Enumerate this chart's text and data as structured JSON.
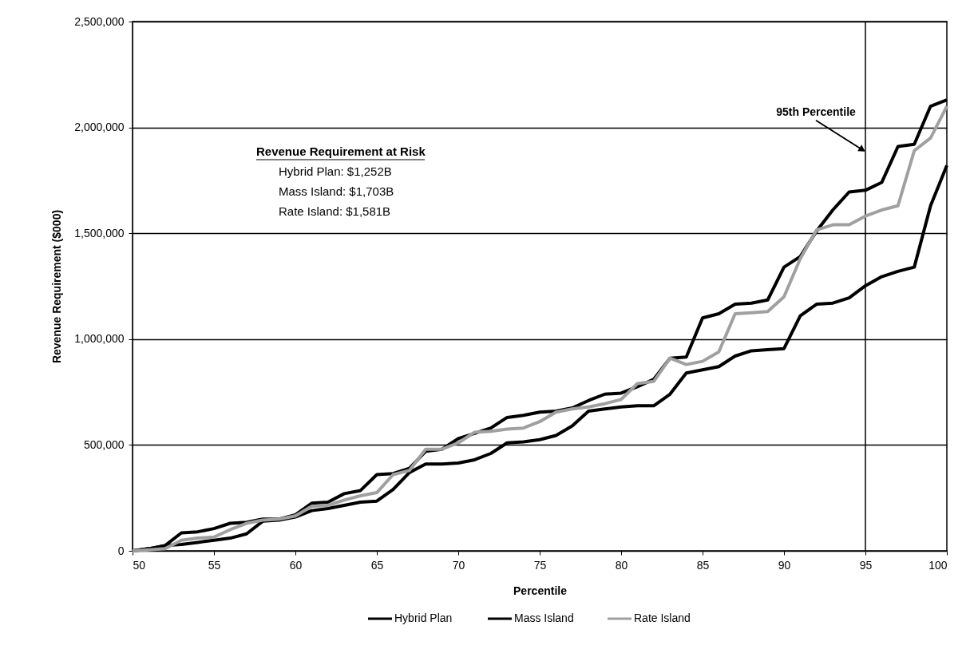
{
  "chart_data": {
    "type": "line",
    "xlabel": "Percentile",
    "ylabel": "Revenue Requirement ($000)",
    "x": [
      50,
      51,
      52,
      53,
      54,
      55,
      56,
      57,
      58,
      59,
      60,
      61,
      62,
      63,
      64,
      65,
      66,
      67,
      68,
      69,
      70,
      71,
      72,
      73,
      74,
      75,
      76,
      77,
      78,
      79,
      80,
      81,
      82,
      83,
      84,
      85,
      86,
      87,
      88,
      89,
      90,
      91,
      92,
      93,
      94,
      95,
      96,
      97,
      98,
      99,
      100
    ],
    "series": [
      {
        "name": "Hybrid Plan",
        "color": "#000000",
        "values": [
          0,
          10000,
          25000,
          30000,
          40000,
          50000,
          60000,
          80000,
          140000,
          145000,
          160000,
          190000,
          200000,
          215000,
          230000,
          235000,
          290000,
          370000,
          410000,
          410000,
          415000,
          430000,
          460000,
          510000,
          515000,
          525000,
          545000,
          590000,
          660000,
          670000,
          680000,
          685000,
          685000,
          740000,
          840000,
          855000,
          870000,
          920000,
          945000,
          950000,
          955000,
          1110000,
          1165000,
          1170000,
          1195000,
          1252000,
          1295000,
          1320000,
          1340000,
          1630000,
          1820000
        ]
      },
      {
        "name": "Mass Island",
        "color": "#000000",
        "values": [
          0,
          10000,
          25000,
          85000,
          90000,
          105000,
          130000,
          135000,
          150000,
          150000,
          170000,
          225000,
          230000,
          270000,
          285000,
          360000,
          365000,
          390000,
          470000,
          480000,
          530000,
          555000,
          580000,
          630000,
          640000,
          655000,
          660000,
          675000,
          710000,
          740000,
          745000,
          775000,
          810000,
          910000,
          915000,
          1100000,
          1120000,
          1165000,
          1170000,
          1185000,
          1340000,
          1390000,
          1510000,
          1610000,
          1695000,
          1703000,
          1740000,
          1910000,
          1920000,
          2100000,
          2130000
        ]
      },
      {
        "name": "Rate Island",
        "color": "#a0a0a0",
        "values": [
          0,
          5000,
          10000,
          50000,
          60000,
          65000,
          100000,
          130000,
          145000,
          150000,
          165000,
          210000,
          215000,
          240000,
          260000,
          275000,
          360000,
          380000,
          480000,
          480000,
          510000,
          560000,
          565000,
          575000,
          580000,
          610000,
          655000,
          670000,
          680000,
          695000,
          715000,
          790000,
          800000,
          910000,
          880000,
          895000,
          940000,
          1120000,
          1125000,
          1130000,
          1200000,
          1380000,
          1515000,
          1540000,
          1540000,
          1581000,
          1610000,
          1630000,
          1890000,
          1950000,
          2100000
        ]
      }
    ],
    "xlim": [
      50,
      100
    ],
    "xticks": [
      50,
      55,
      60,
      65,
      70,
      75,
      80,
      85,
      90,
      95,
      100
    ],
    "ylim": [
      0,
      2500000
    ],
    "yticks": [
      0,
      {
        "value": 500000,
        "label": "500,000"
      },
      {
        "value": 1000000,
        "label": "1,000,000"
      },
      {
        "value": 1500000,
        "label": "1,500,000"
      },
      {
        "value": 2000000,
        "label": "2,000,000"
      },
      {
        "value": 2500000,
        "label": "2,500,000"
      }
    ],
    "grid": "y",
    "legend": "bottom",
    "marker": "none",
    "line_style": "solid",
    "ref_lines": [
      {
        "axis": "x",
        "value": 95,
        "color": "#000000"
      }
    ],
    "annotations": [
      {
        "text": "95th Percentile",
        "x": 95,
        "y": 1890000
      },
      "Revenue Requirement at Risk",
      "Hybrid Plan:    $1,252B",
      "Mass Island:    $1,703B",
      "Rate Island:    $1,581B"
    ]
  }
}
